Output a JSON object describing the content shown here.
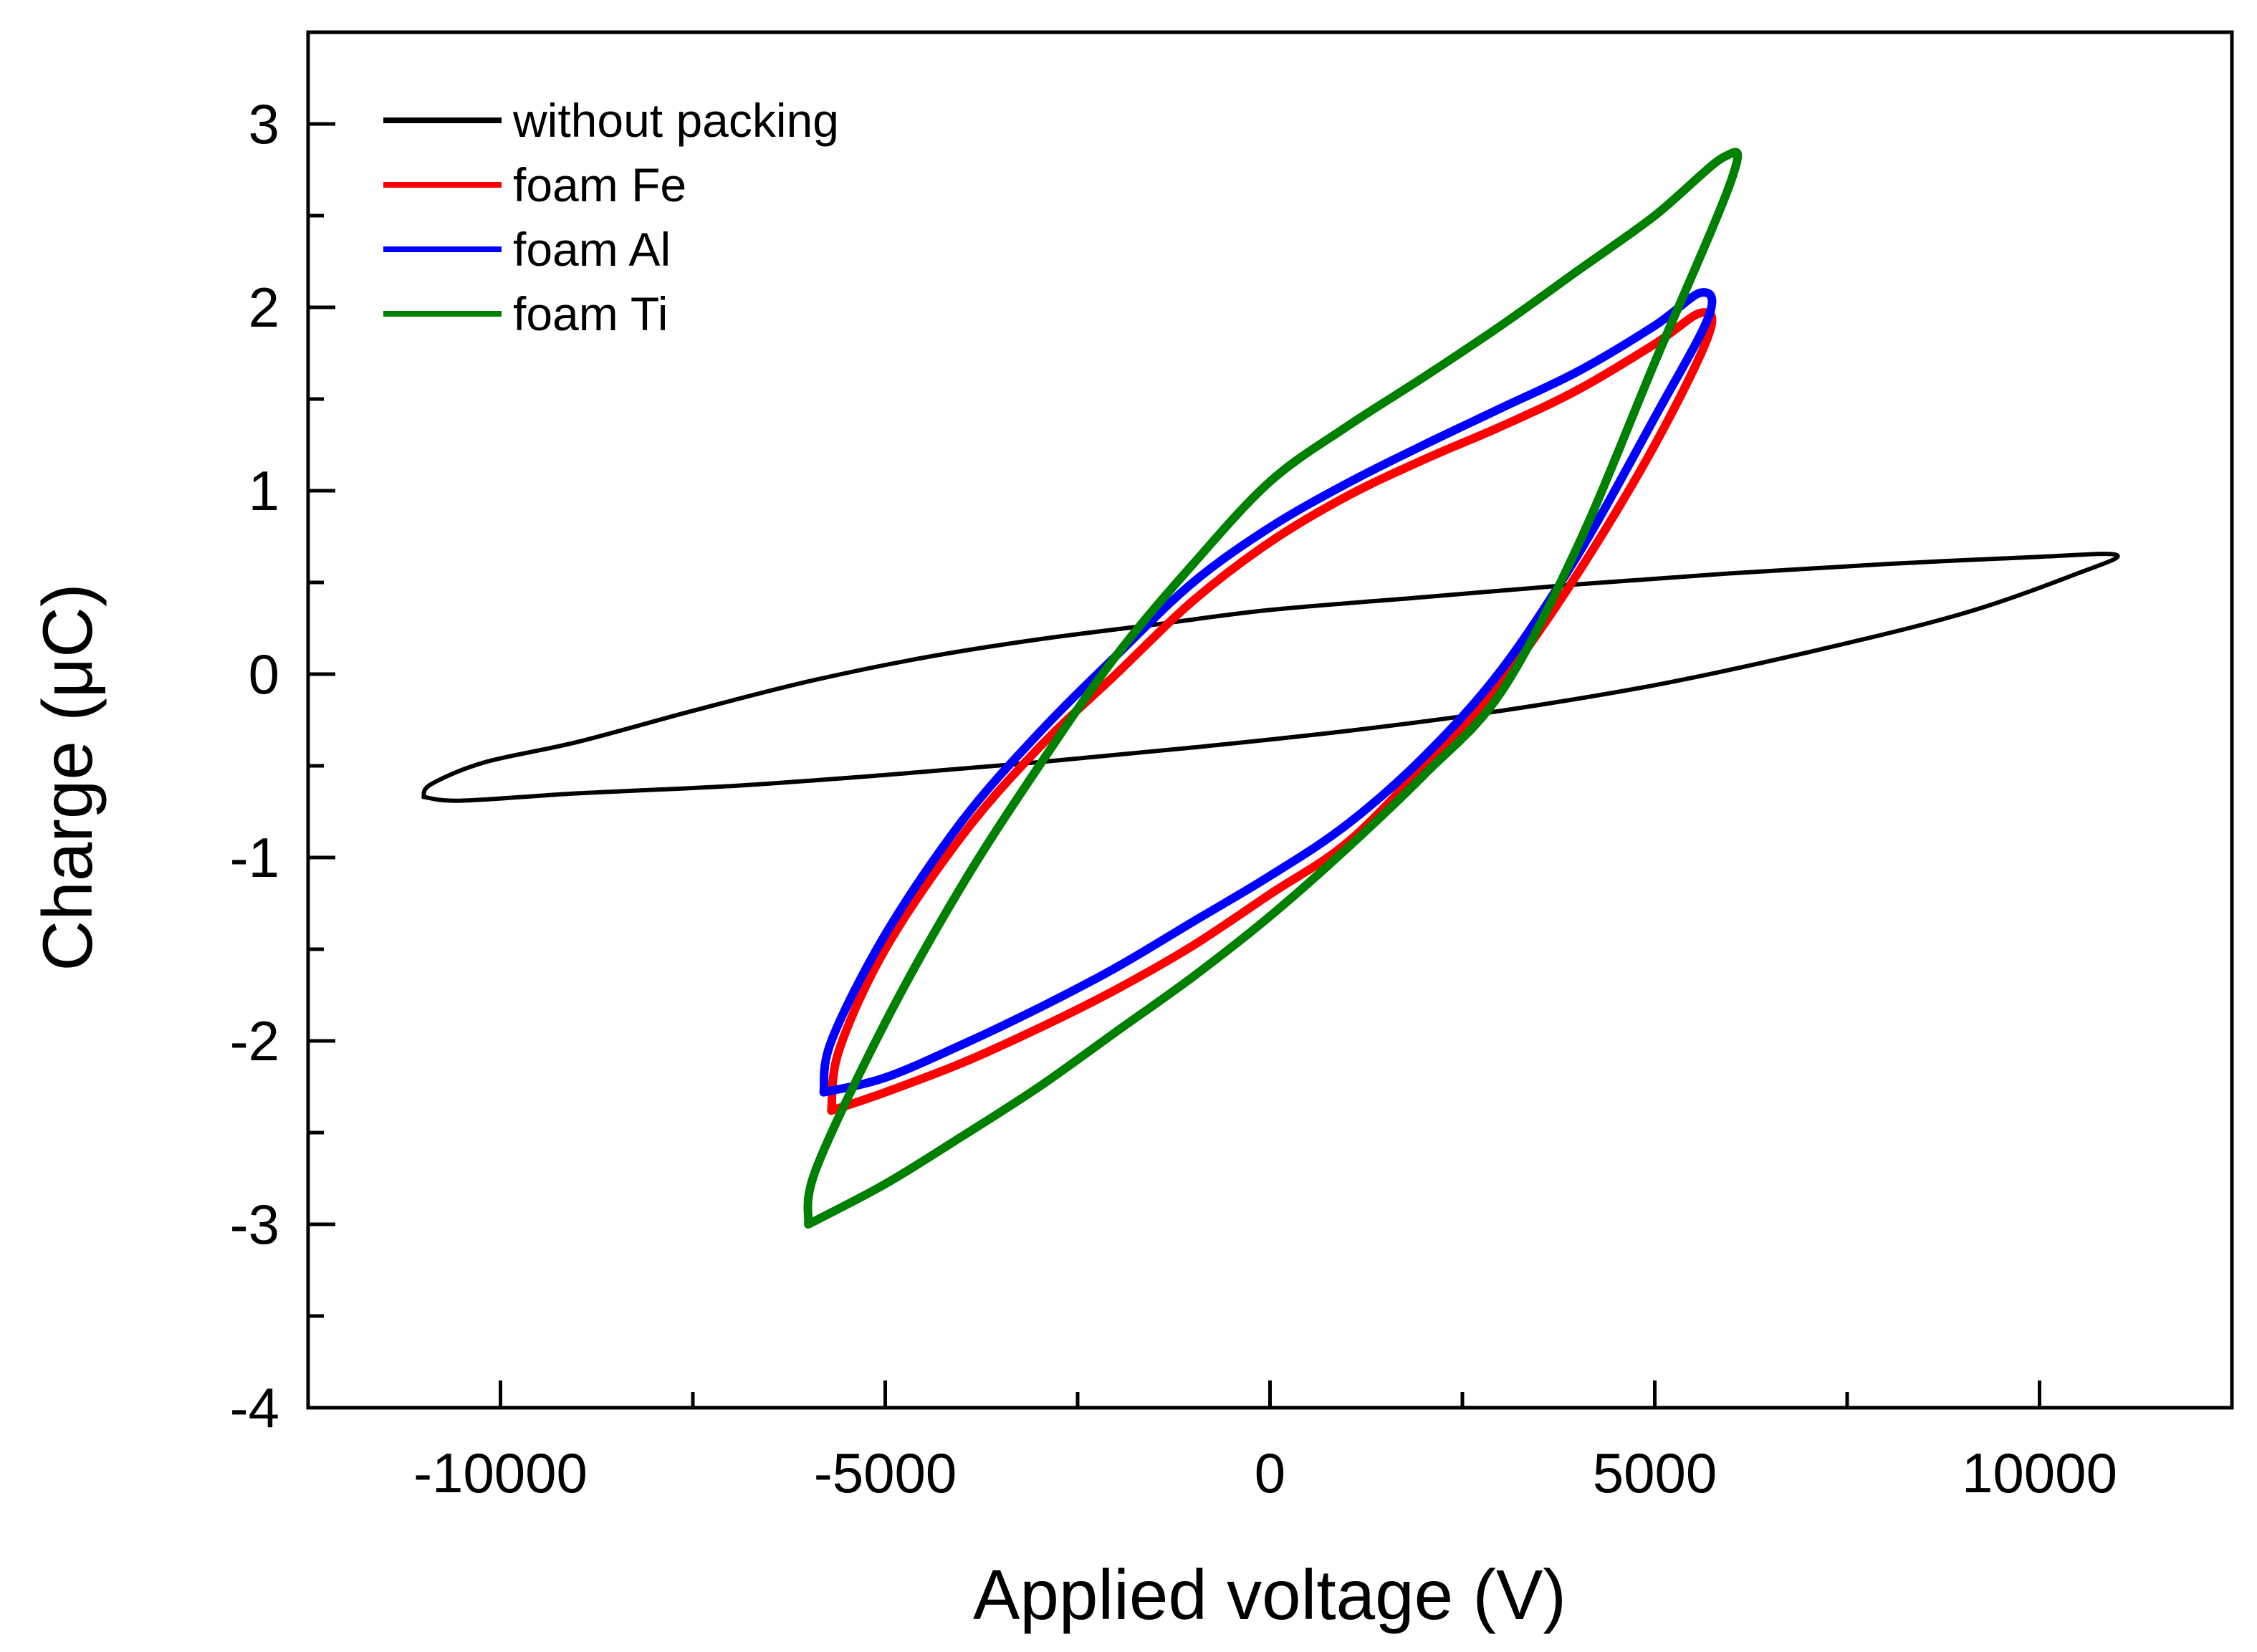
{
  "chart_data": {
    "type": "line",
    "title": "",
    "xlabel": "Applied voltage (V)",
    "ylabel": "Charge (μC)",
    "xlim": [
      -12500,
      12500
    ],
    "ylim": [
      -4,
      3.5
    ],
    "x_ticks": [
      -10000,
      -5000,
      0,
      5000,
      10000
    ],
    "x_tick_labels": [
      "-10000",
      "-5000",
      "0",
      "5000",
      "10000"
    ],
    "y_ticks": [
      -4,
      -3,
      -2,
      -1,
      0,
      1,
      2,
      3
    ],
    "y_tick_labels": [
      "-4",
      "-3",
      "-2",
      "-1",
      "0",
      "1",
      "2",
      "3"
    ],
    "grid": false,
    "legend_position": "top-left",
    "series": [
      {
        "name": "without packing",
        "color": "#000000",
        "points": [
          [
            -11000,
            -0.67
          ],
          [
            -10900,
            -0.6
          ],
          [
            -10200,
            -0.48
          ],
          [
            -9000,
            -0.37
          ],
          [
            -7500,
            -0.2
          ],
          [
            -6000,
            -0.04
          ],
          [
            -4500,
            0.09
          ],
          [
            -3000,
            0.19
          ],
          [
            -1500,
            0.27
          ],
          [
            0,
            0.35
          ],
          [
            2000,
            0.42
          ],
          [
            4000,
            0.49
          ],
          [
            6000,
            0.55
          ],
          [
            8000,
            0.6
          ],
          [
            10000,
            0.64
          ],
          [
            11000,
            0.65
          ],
          [
            10500,
            0.55
          ],
          [
            9000,
            0.33
          ],
          [
            7000,
            0.12
          ],
          [
            5000,
            -0.06
          ],
          [
            3000,
            -0.2
          ],
          [
            1000,
            -0.31
          ],
          [
            -1000,
            -0.4
          ],
          [
            -3000,
            -0.48
          ],
          [
            -5000,
            -0.55
          ],
          [
            -7000,
            -0.61
          ],
          [
            -9000,
            -0.65
          ],
          [
            -10500,
            -0.69
          ],
          [
            -11000,
            -0.67
          ]
        ]
      },
      {
        "name": "foam Fe",
        "color": "#ff0000",
        "points": [
          [
            -5700,
            -2.38
          ],
          [
            -5600,
            -2.05
          ],
          [
            -5000,
            -1.5
          ],
          [
            -4000,
            -0.88
          ],
          [
            -3000,
            -0.4
          ],
          [
            -2000,
            0.0
          ],
          [
            -1000,
            0.4
          ],
          [
            0,
            0.72
          ],
          [
            1000,
            0.97
          ],
          [
            2000,
            1.17
          ],
          [
            3000,
            1.35
          ],
          [
            4000,
            1.55
          ],
          [
            5000,
            1.8
          ],
          [
            5600,
            1.97
          ],
          [
            5700,
            1.85
          ],
          [
            5000,
            1.25
          ],
          [
            4000,
            0.55
          ],
          [
            3000,
            -0.05
          ],
          [
            2000,
            -0.5
          ],
          [
            1000,
            -0.92
          ],
          [
            0,
            -1.2
          ],
          [
            -1000,
            -1.48
          ],
          [
            -2000,
            -1.72
          ],
          [
            -3000,
            -1.93
          ],
          [
            -4000,
            -2.12
          ],
          [
            -5000,
            -2.28
          ],
          [
            -5700,
            -2.38
          ]
        ]
      },
      {
        "name": "foam Al",
        "color": "#0000ff",
        "points": [
          [
            -5800,
            -2.28
          ],
          [
            -5700,
            -2.0
          ],
          [
            -5000,
            -1.42
          ],
          [
            -4000,
            -0.8
          ],
          [
            -3000,
            -0.32
          ],
          [
            -2000,
            0.1
          ],
          [
            -1000,
            0.5
          ],
          [
            0,
            0.8
          ],
          [
            1000,
            1.04
          ],
          [
            2000,
            1.25
          ],
          [
            3000,
            1.45
          ],
          [
            4000,
            1.65
          ],
          [
            5000,
            1.9
          ],
          [
            5600,
            2.08
          ],
          [
            5700,
            1.95
          ],
          [
            5000,
            1.4
          ],
          [
            4000,
            0.65
          ],
          [
            3000,
            0.02
          ],
          [
            2000,
            -0.45
          ],
          [
            1000,
            -0.82
          ],
          [
            0,
            -1.1
          ],
          [
            -1000,
            -1.35
          ],
          [
            -2000,
            -1.6
          ],
          [
            -3000,
            -1.82
          ],
          [
            -4000,
            -2.02
          ],
          [
            -5000,
            -2.2
          ],
          [
            -5800,
            -2.28
          ]
        ]
      },
      {
        "name": "foam Ti",
        "color": "#008000",
        "points": [
          [
            -6000,
            -3.0
          ],
          [
            -5900,
            -2.7
          ],
          [
            -5000,
            -1.9
          ],
          [
            -4000,
            -1.15
          ],
          [
            -3000,
            -0.5
          ],
          [
            -2000,
            0.1
          ],
          [
            -1000,
            0.6
          ],
          [
            0,
            1.05
          ],
          [
            1000,
            1.35
          ],
          [
            2000,
            1.62
          ],
          [
            3000,
            1.9
          ],
          [
            4000,
            2.2
          ],
          [
            5000,
            2.5
          ],
          [
            5900,
            2.82
          ],
          [
            6000,
            2.7
          ],
          [
            5000,
            1.7
          ],
          [
            4000,
            0.7
          ],
          [
            3000,
            -0.1
          ],
          [
            2000,
            -0.55
          ],
          [
            1000,
            -0.95
          ],
          [
            0,
            -1.32
          ],
          [
            -1000,
            -1.65
          ],
          [
            -2000,
            -1.95
          ],
          [
            -3000,
            -2.25
          ],
          [
            -4000,
            -2.52
          ],
          [
            -5000,
            -2.78
          ],
          [
            -6000,
            -3.0
          ]
        ]
      }
    ]
  }
}
